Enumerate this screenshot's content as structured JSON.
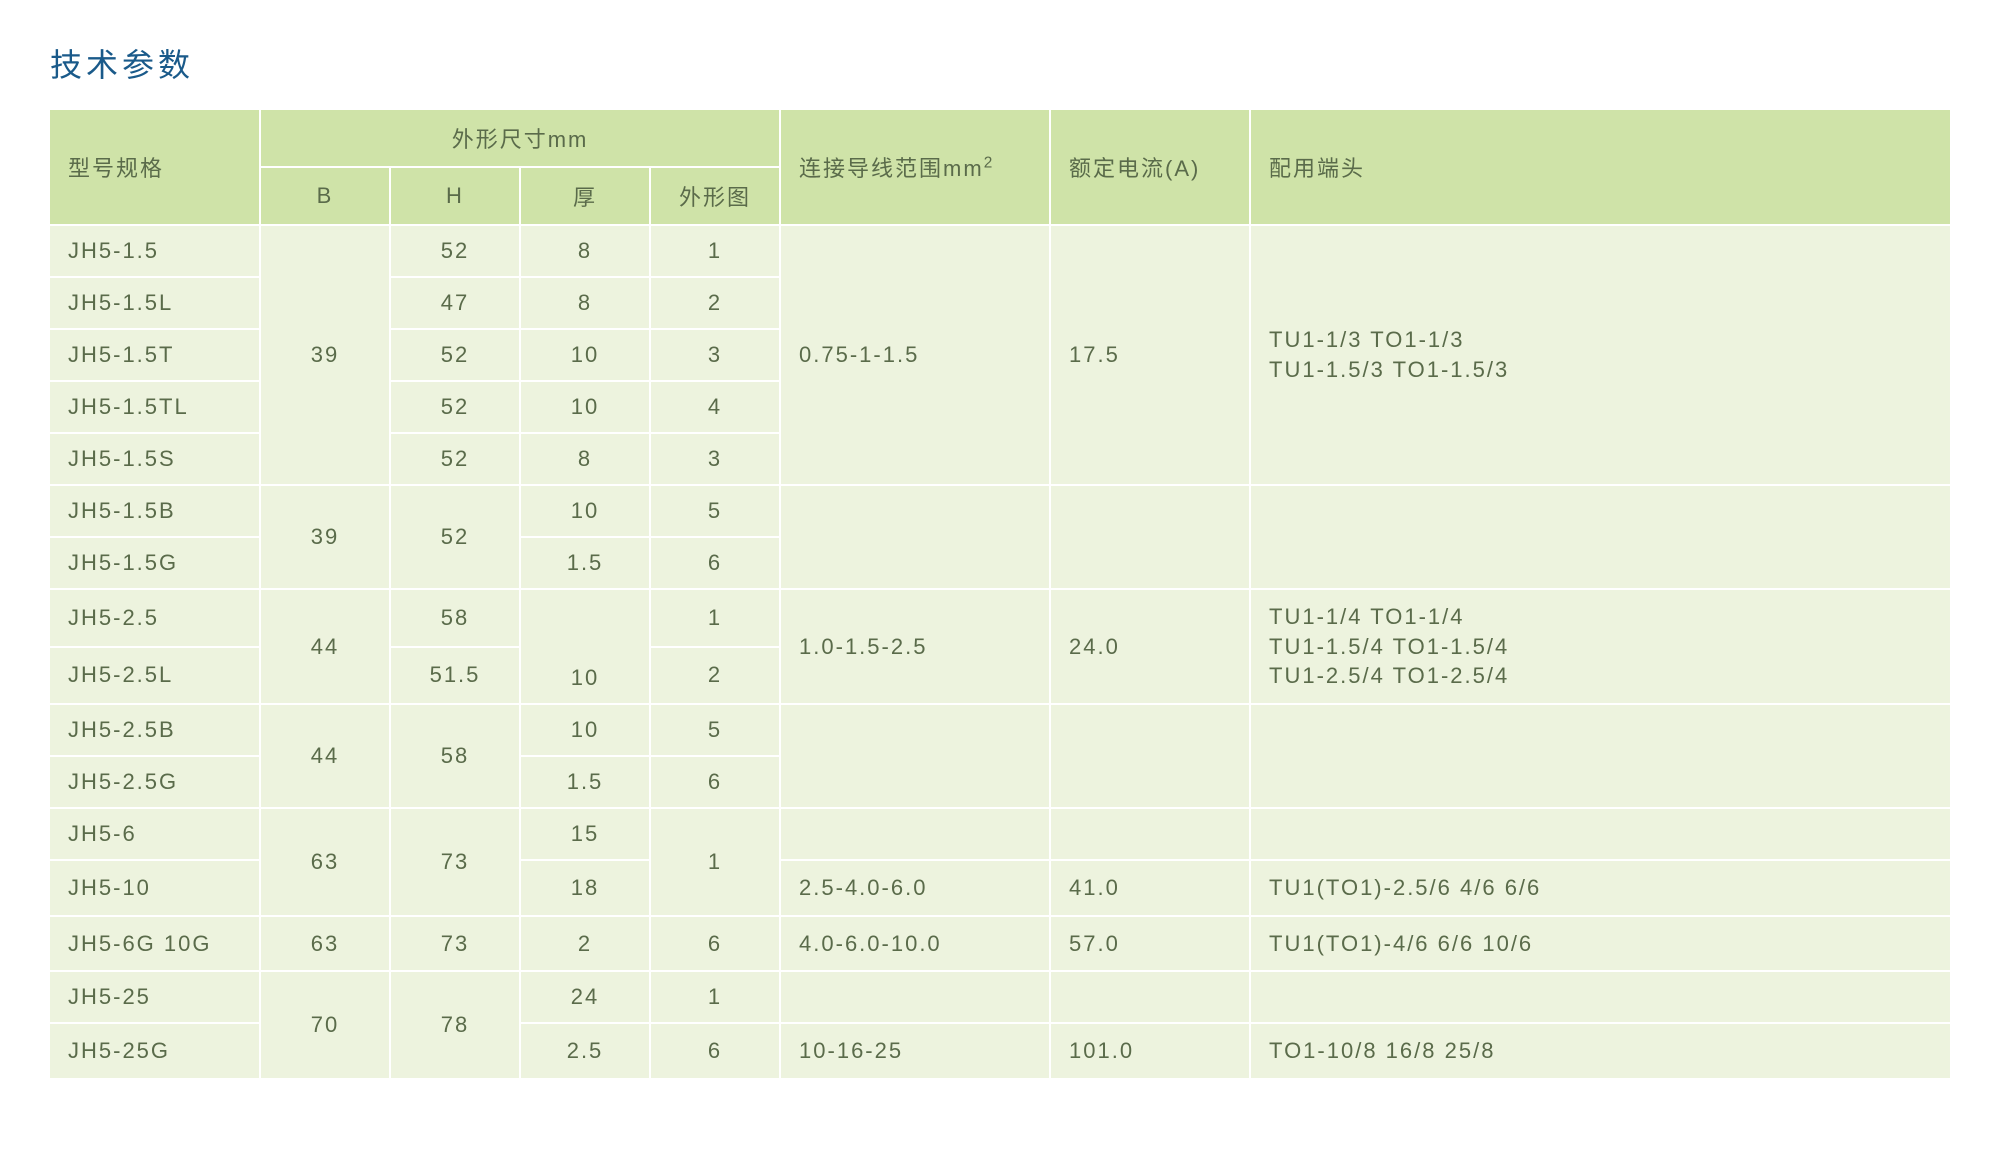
{
  "title": "技术参数",
  "headers": {
    "model": "型号规格",
    "dimensions": "外形尺寸mm",
    "B": "B",
    "H": "H",
    "thick": "厚",
    "shape": "外形图",
    "wire_pre": "连接导线范围mm",
    "wire_sup": "2",
    "current": "额定电流(A)",
    "terminal": "配用端头"
  },
  "colors": {
    "title": "#1a5a8a",
    "header_bg": "#cfe3a8",
    "cell_bg": "#edf3de",
    "border": "#ffffff",
    "text": "#5a6b4a"
  },
  "fontsize": {
    "title": 32,
    "cell": 22
  },
  "rows": [
    {
      "model": "JH5-1.5",
      "B": "39",
      "Brs": 5,
      "H": "52",
      "thick": "8",
      "shape": "1",
      "wire": "0.75-1-1.5",
      "wrs": 5,
      "current": "17.5",
      "crs": 5,
      "terminal": "TU1-1/3 TO1-1/3\nTU1-1.5/3 TO1-1.5/3",
      "trs": 5
    },
    {
      "model": "JH5-1.5L",
      "H": "47",
      "thick": "8",
      "shape": "2"
    },
    {
      "model": "JH5-1.5T",
      "H": "52",
      "thick": "10",
      "shape": "3"
    },
    {
      "model": "JH5-1.5TL",
      "H": "52",
      "thick": "10",
      "shape": "4"
    },
    {
      "model": "JH5-1.5S",
      "H": "52",
      "thick": "8",
      "shape": "3"
    },
    {
      "model": "JH5-1.5B",
      "B": "39",
      "Brs": 2,
      "H": "52",
      "Hrs": 2,
      "thick": "10",
      "shape": "5",
      "wire": "",
      "wrs": 2,
      "current": "",
      "crs": 2,
      "terminal": "",
      "trs": 2
    },
    {
      "model": "JH5-1.5G",
      "thick": "1.5",
      "shape": "6"
    },
    {
      "model": "JH5-2.5",
      "B": "44",
      "Brs": 2,
      "H": "58",
      "thick": "",
      "thickrs": 2,
      "thickVal": "10",
      "shape": "1",
      "wire": "1.0-1.5-2.5",
      "wrs": 2,
      "current": "24.0",
      "crs": 2,
      "terminal": "TU1-1/4  TO1-1/4\nTU1-1.5/4 TO1-1.5/4\nTU1-2.5/4 TO1-2.5/4",
      "trs": 2
    },
    {
      "model": "JH5-2.5L",
      "H": "51.5",
      "shape": "2"
    },
    {
      "model": "JH5-2.5B",
      "B": "44",
      "Brs": 2,
      "H": "58",
      "Hrs": 2,
      "thick": "10",
      "shape": "5",
      "wire": "",
      "wrs": 2,
      "current": "",
      "crs": 2,
      "terminal": "",
      "trs": 2
    },
    {
      "model": "JH5-2.5G",
      "thick": "1.5",
      "shape": "6"
    },
    {
      "model": "JH5-6",
      "B": "63",
      "Brs": 2,
      "H": "73",
      "Hrs": 2,
      "thick": "15",
      "shape": "1",
      "shapers": 2,
      "wire": "",
      "current": "",
      "terminal": ""
    },
    {
      "model": "JH5-10",
      "thick": "18",
      "wire": "2.5-4.0-6.0",
      "current": "41.0",
      "terminal": "TU1(TO1)-2.5/6 4/6 6/6"
    },
    {
      "model": "JH5-6G 10G",
      "B": "63",
      "H": "73",
      "thick": "2",
      "shape": "6",
      "wire": "4.0-6.0-10.0",
      "current": "57.0",
      "terminal": "TU1(TO1)-4/6  6/6 10/6"
    },
    {
      "model": "JH5-25",
      "B": "70",
      "Brs": 2,
      "H": "78",
      "Hrs": 2,
      "thick": "24",
      "shape": "1",
      "wire": "",
      "current": "",
      "terminal": ""
    },
    {
      "model": "JH5-25G",
      "thick": "2.5",
      "shape": "6",
      "wire": "10-16-25",
      "current": "101.0",
      "terminal": "TO1-10/8 16/8 25/8"
    }
  ]
}
